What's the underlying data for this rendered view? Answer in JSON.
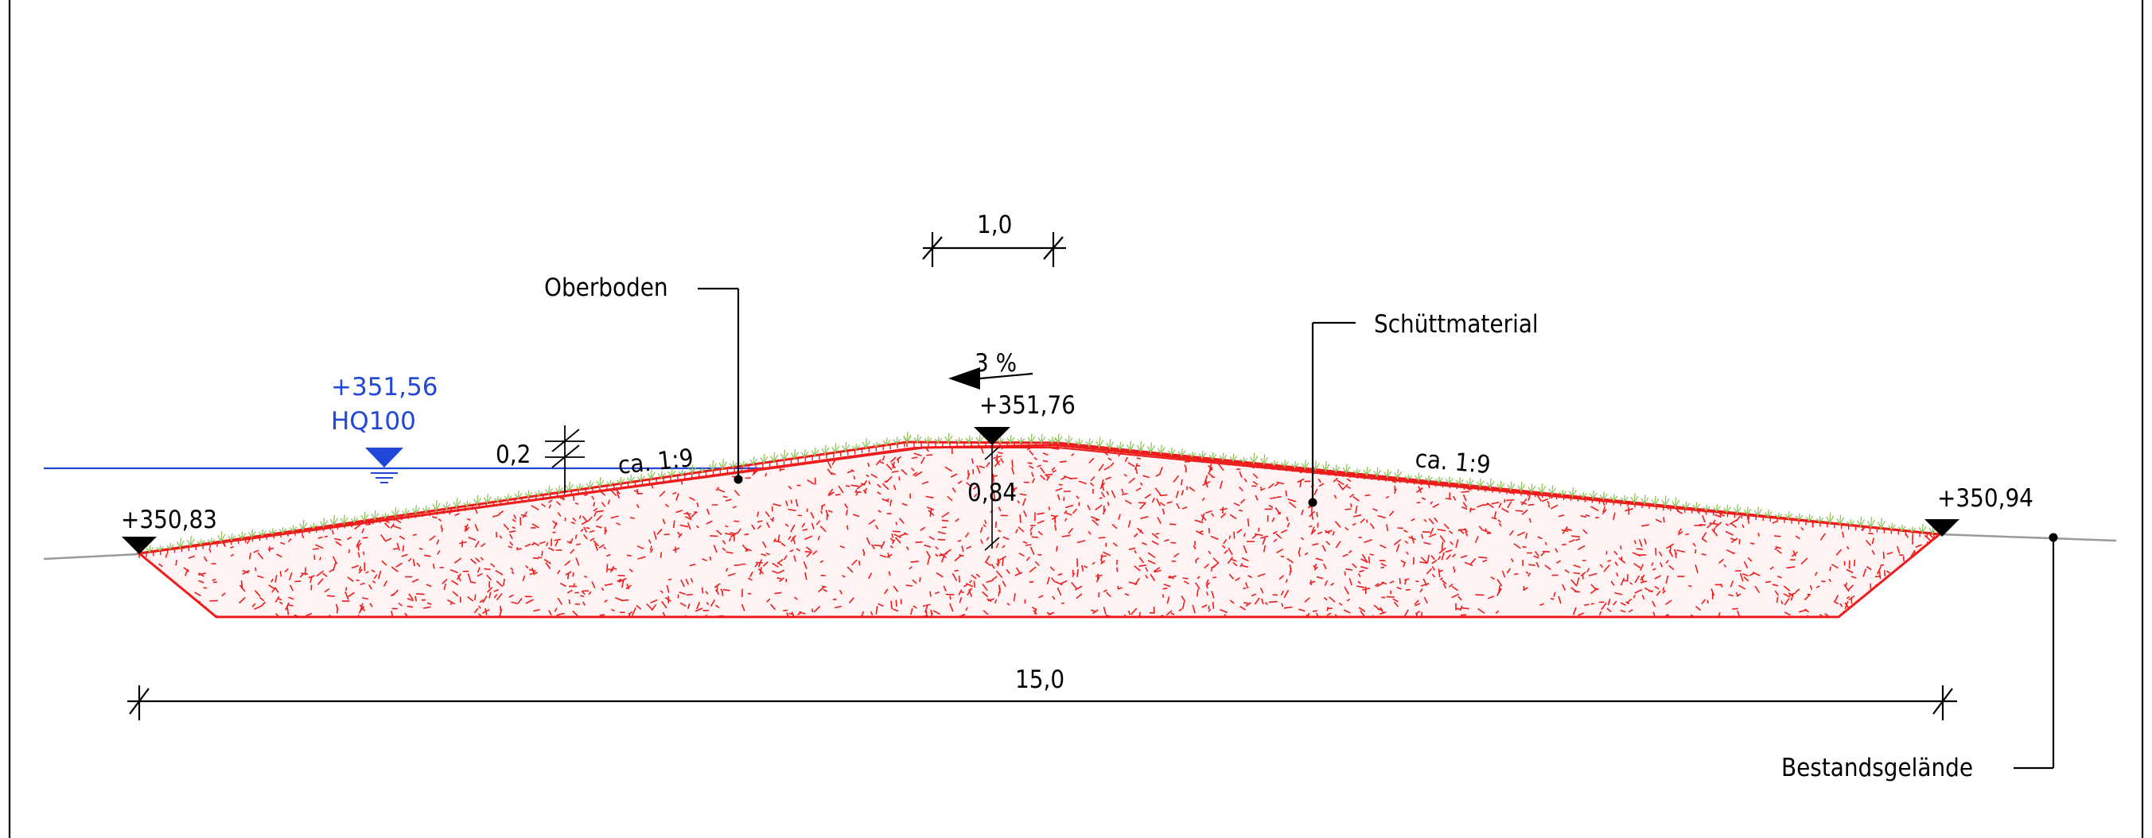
{
  "labels": {
    "oberboden": "Oberboden",
    "schuettmaterial": "Schüttmaterial",
    "bestandsgelaende": "Bestandsgelände",
    "hq_level": "+351,56",
    "hq_name": "HQ100",
    "thickness": "0,2",
    "slope_left": "ca. 1:9",
    "slope_right": "ca. 1:9",
    "crest_gradient": "3 %",
    "crest_level": "+351,76",
    "crest_height": "0,84",
    "crest_width": "1,0",
    "left_level": "+350,83",
    "right_level": "+350,94",
    "total_width": "15,0"
  },
  "colors": {
    "fill_material": "#ee1c1c",
    "water": "#2147d6",
    "grass": "#8fc25a",
    "ground_line": "#999999",
    "line": "#000000"
  }
}
